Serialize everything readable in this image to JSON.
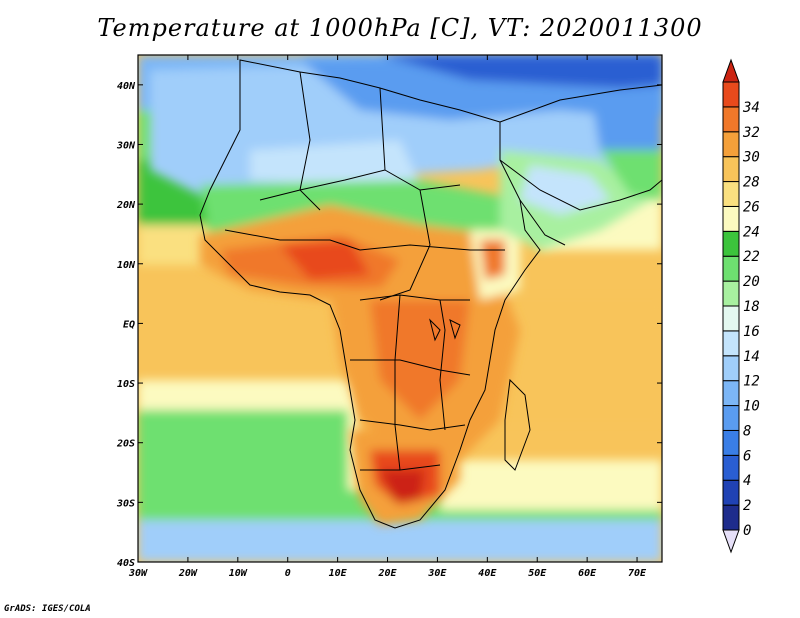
{
  "title": "Temperature at 1000hPa [C], VT: 2020011300",
  "credit": "GrADS: IGES/COLA",
  "map": {
    "lon_range": [
      -30,
      75
    ],
    "lat_range": [
      -40,
      45
    ],
    "x_ticks": [
      "30W",
      "20W",
      "10W",
      "0",
      "10E",
      "20E",
      "30E",
      "40E",
      "50E",
      "60E",
      "70E"
    ],
    "y_ticks": [
      "40S",
      "30S",
      "20S",
      "10S",
      "EQ",
      "10N",
      "20N",
      "30N",
      "40N"
    ]
  },
  "colorbar": {
    "levels": [
      "0",
      "2",
      "4",
      "6",
      "8",
      "10",
      "12",
      "14",
      "16",
      "18",
      "20",
      "22",
      "24",
      "26",
      "28",
      "30",
      "32",
      "34"
    ],
    "colors": [
      "#1e2c8c",
      "#2042b4",
      "#2a5ed2",
      "#3a7ee6",
      "#5a9cf0",
      "#7cb6f6",
      "#a0cefa",
      "#c4e4fc",
      "#e4f8f0",
      "#a8f0a0",
      "#6ee070",
      "#3cc43c",
      "#fcfac0",
      "#fae080",
      "#f8c45a",
      "#f4a03a",
      "#f0782a",
      "#e84a1c",
      "#cc2412"
    ],
    "under_color": "#e6e0f8"
  }
}
